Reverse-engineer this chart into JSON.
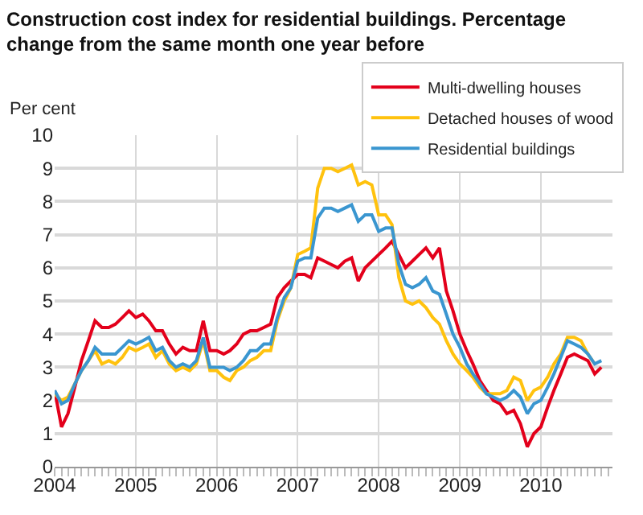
{
  "chart_data": {
    "type": "line",
    "title": "Construction cost index for residential buildings. Percentage change from the same month one year before",
    "ylabel": "Per cent",
    "x": [
      "2004-01",
      "2004-02",
      "2004-03",
      "2004-04",
      "2004-05",
      "2004-06",
      "2004-07",
      "2004-08",
      "2004-09",
      "2004-10",
      "2004-11",
      "2004-12",
      "2005-01",
      "2005-02",
      "2005-03",
      "2005-04",
      "2005-05",
      "2005-06",
      "2005-07",
      "2005-08",
      "2005-09",
      "2005-10",
      "2005-11",
      "2005-12",
      "2006-01",
      "2006-02",
      "2006-03",
      "2006-04",
      "2006-05",
      "2006-06",
      "2006-07",
      "2006-08",
      "2006-09",
      "2006-10",
      "2006-11",
      "2006-12",
      "2007-01",
      "2007-02",
      "2007-03",
      "2007-04",
      "2007-05",
      "2007-06",
      "2007-07",
      "2007-08",
      "2007-09",
      "2007-10",
      "2007-11",
      "2007-12",
      "2008-01",
      "2008-02",
      "2008-03",
      "2008-04",
      "2008-05",
      "2008-06",
      "2008-07",
      "2008-08",
      "2008-09",
      "2008-10",
      "2008-11",
      "2008-12",
      "2009-01",
      "2009-02",
      "2009-03",
      "2009-04",
      "2009-05",
      "2009-06",
      "2009-07",
      "2009-08",
      "2009-09",
      "2009-10",
      "2009-11",
      "2009-12",
      "2010-01",
      "2010-02",
      "2010-03",
      "2010-04",
      "2010-05",
      "2010-06",
      "2010-07",
      "2010-08",
      "2010-09",
      "2010-10"
    ],
    "series": [
      {
        "name": "Multi-dwelling houses",
        "color": "#e3001b",
        "values": [
          2.3,
          1.2,
          1.6,
          2.4,
          3.2,
          3.8,
          4.4,
          4.2,
          4.2,
          4.3,
          4.5,
          4.7,
          4.5,
          4.6,
          4.4,
          4.1,
          4.1,
          3.7,
          3.4,
          3.6,
          3.5,
          3.5,
          4.4,
          3.5,
          3.5,
          3.4,
          3.5,
          3.7,
          4.0,
          4.1,
          4.1,
          4.2,
          4.3,
          5.1,
          5.4,
          5.6,
          5.8,
          5.8,
          5.7,
          6.3,
          6.2,
          6.1,
          6.0,
          6.2,
          6.3,
          5.6,
          6.0,
          6.2,
          6.4,
          6.6,
          6.8,
          6.4,
          6.0,
          6.2,
          6.4,
          6.6,
          6.3,
          6.6,
          5.3,
          4.7,
          4.0,
          3.5,
          3.1,
          2.6,
          2.3,
          2.0,
          1.9,
          1.6,
          1.7,
          1.3,
          0.6,
          1.0,
          1.2,
          1.8,
          2.3,
          2.8,
          3.3,
          3.4,
          3.3,
          3.2,
          2.8,
          3.0
        ]
      },
      {
        "name": "Detached houses of wood",
        "color": "#ffc20e",
        "values": [
          2.2,
          2.0,
          2.1,
          2.5,
          2.9,
          3.2,
          3.5,
          3.1,
          3.2,
          3.1,
          3.3,
          3.6,
          3.5,
          3.6,
          3.7,
          3.3,
          3.5,
          3.1,
          2.9,
          3.0,
          2.9,
          3.1,
          3.8,
          2.9,
          2.9,
          2.7,
          2.6,
          2.9,
          3.0,
          3.2,
          3.3,
          3.5,
          3.5,
          4.4,
          5.0,
          5.4,
          6.4,
          6.5,
          6.6,
          8.4,
          9.0,
          9.0,
          8.9,
          9.0,
          9.1,
          8.5,
          8.6,
          8.5,
          7.6,
          7.6,
          7.3,
          5.7,
          5.0,
          4.9,
          5.0,
          4.8,
          4.5,
          4.3,
          3.8,
          3.4,
          3.1,
          2.9,
          2.7,
          2.4,
          2.2,
          2.2,
          2.2,
          2.3,
          2.7,
          2.6,
          2.0,
          2.3,
          2.4,
          2.7,
          3.1,
          3.4,
          3.9,
          3.9,
          3.8,
          3.4,
          3.1,
          null
        ]
      },
      {
        "name": "Residential buildings",
        "color": "#3a96d0",
        "values": [
          2.3,
          1.9,
          2.0,
          2.5,
          2.9,
          3.2,
          3.6,
          3.4,
          3.4,
          3.4,
          3.6,
          3.8,
          3.7,
          3.8,
          3.9,
          3.5,
          3.6,
          3.2,
          3.0,
          3.1,
          3.0,
          3.2,
          3.9,
          3.0,
          3.0,
          3.0,
          2.9,
          3.0,
          3.2,
          3.5,
          3.5,
          3.7,
          3.7,
          4.5,
          5.1,
          5.4,
          6.2,
          6.3,
          6.3,
          7.5,
          7.8,
          7.8,
          7.7,
          7.8,
          7.9,
          7.4,
          7.6,
          7.6,
          7.1,
          7.2,
          7.2,
          6.1,
          5.5,
          5.4,
          5.5,
          5.7,
          5.3,
          5.2,
          4.6,
          4.0,
          3.6,
          3.1,
          2.8,
          2.5,
          2.2,
          2.1,
          2.0,
          2.1,
          2.3,
          2.1,
          1.6,
          1.9,
          2.0,
          2.4,
          2.8,
          3.3,
          3.8,
          3.7,
          3.6,
          3.4,
          3.1,
          3.2
        ]
      }
    ],
    "xlim": [
      "2004-01-01",
      "2010-11-20"
    ],
    "xticks": [
      {
        "value": "2004",
        "label": "2004"
      },
      {
        "value": "2005",
        "label": "2005"
      },
      {
        "value": "2006",
        "label": "2006"
      },
      {
        "value": "2007",
        "label": "2007"
      },
      {
        "value": "2008",
        "label": "2008"
      },
      {
        "value": "2009",
        "label": "2009"
      },
      {
        "value": "2010",
        "label": "2010"
      }
    ],
    "ylim": [
      0,
      10
    ],
    "yticks": [
      0,
      1,
      2,
      3,
      4,
      5,
      6,
      7,
      8,
      9,
      10
    ],
    "grid": true,
    "legend": "top right",
    "marker": "none",
    "line_style": "solid"
  }
}
